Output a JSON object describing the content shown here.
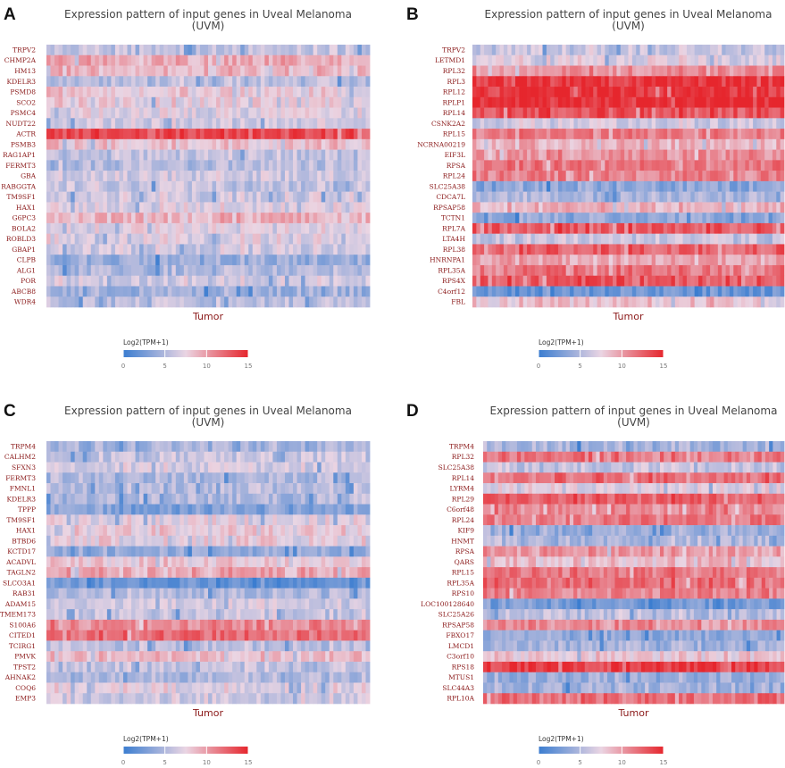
{
  "colors": {
    "scale_low": "#3b7dd0",
    "scale_mid": "#ead5e3",
    "scale_high": "#e6262d",
    "letter": "#111111",
    "title": "#444444",
    "gene_label": "#8b1a1a",
    "xlabel": "#8b1a1a"
  },
  "chart_data": [
    {
      "panel": "A",
      "type": "heatmap",
      "title": "Expression pattern of input genes in Uveal Melanoma",
      "subtitle": "(UVM)",
      "xlabel": "Tumor",
      "legend_title": "Log2(TPM+1)",
      "legend_ticks": [
        "0",
        "5",
        "10",
        "15"
      ],
      "value_range": [
        0,
        15
      ],
      "sample_count": 80,
      "rows": [
        "TRPV2",
        "CHMP2A",
        "HM13",
        "KDELR3",
        "PSMD8",
        "SCO2",
        "PSMC4",
        "NUDT22",
        "ACTR",
        "PSMB3",
        "RAG1AP1",
        "FERMT3",
        "GBA",
        "RABGGTA",
        "TM9SF1",
        "HAX1",
        "G6PC3",
        "BOLA2",
        "ROBLD3",
        "GBAP1",
        "CLPB",
        "ALG1",
        "POR",
        "ABCB8",
        "WDR4"
      ],
      "row_mean": [
        6,
        9.5,
        9,
        5.5,
        8,
        7.5,
        7,
        6.5,
        13.5,
        8.5,
        6,
        5.5,
        6.5,
        6,
        6.5,
        7,
        9,
        7.5,
        7,
        6.5,
        4,
        5,
        6.5,
        4.5,
        5.5
      ]
    },
    {
      "panel": "B",
      "type": "heatmap",
      "title": "Expression pattern of input genes in Uveal Melanoma",
      "subtitle": "(UVM)",
      "xlabel": "Tumor",
      "legend_title": "Log2(TPM+1)",
      "legend_ticks": [
        "0",
        "5",
        "10",
        "15"
      ],
      "value_range": [
        0,
        15
      ],
      "sample_count": 80,
      "rows": [
        "TRPV2",
        "LETMD1",
        "RPL32",
        "RPL3",
        "RPL12",
        "RPLP1",
        "RPL14",
        "CSNK2A2",
        "RPL15",
        "NCRNA00219",
        "EIF3L",
        "RPSA",
        "RPL24",
        "SLC25A38",
        "CDCA7L",
        "RPSAP58",
        "TCTN1",
        "RPL7A",
        "LTA4H",
        "RPL38",
        "HNRNPA1",
        "RPL35A",
        "RPS4X",
        "C4orf12",
        "FBL"
      ],
      "row_mean": [
        6,
        7,
        10.5,
        14.5,
        14.5,
        15,
        13,
        6.5,
        11,
        9,
        10.5,
        11.5,
        11,
        3.5,
        5,
        9,
        3.5,
        13,
        6,
        12.5,
        9.5,
        11.5,
        13,
        2,
        8.5
      ]
    },
    {
      "panel": "C",
      "type": "heatmap",
      "title": "Expression pattern of input genes in Uveal Melanoma",
      "subtitle": "(UVM)",
      "xlabel": "Tumor",
      "legend_title": "Log2(TPM+1)",
      "legend_ticks": [
        "0",
        "5",
        "10",
        "15"
      ],
      "value_range": [
        0,
        15
      ],
      "sample_count": 80,
      "rows": [
        "TRPM4",
        "CALHM2",
        "SFXN3",
        "FERMT3",
        "FMNL1",
        "KDELR3",
        "TPPP",
        "TM9SF1",
        "HAX1",
        "BTBD6",
        "KCTD17",
        "ACADVL",
        "TAGLN2",
        "SLCO3A1",
        "RAB31",
        "ADAM15",
        "TMEM173",
        "S100A6",
        "CITED1",
        "TCIRG1",
        "PMVK",
        "TPST2",
        "AHNAK2",
        "COQ6",
        "EMP3"
      ],
      "row_mean": [
        4.5,
        6,
        6.5,
        5,
        5.5,
        5,
        3,
        7,
        8,
        7.5,
        4,
        8,
        9.5,
        2,
        5,
        6.5,
        6,
        11,
        12,
        5.5,
        8.5,
        6,
        5,
        7,
        6.5
      ]
    },
    {
      "panel": "D",
      "type": "heatmap",
      "title": "Expression pattern of input genes in Uveal Melanoma",
      "subtitle": "(UVM)",
      "xlabel": "Tumor",
      "legend_title": "Log2(TPM+1)",
      "legend_ticks": [
        "0",
        "5",
        "10",
        "15"
      ],
      "value_range": [
        0,
        15
      ],
      "sample_count": 80,
      "rows": [
        "TRPM4",
        "RPL32",
        "SLC25A38",
        "RPL14",
        "LYRM4",
        "RPL29",
        "C6orf48",
        "RPL24",
        "KIF9",
        "HNMT",
        "RPSA",
        "QARS",
        "RPL15",
        "RPL35A",
        "RPS10",
        "LOC100128640",
        "SLC25A26",
        "RPSAP58",
        "FBXO17",
        "LMCD1",
        "C3orf10",
        "RPS18",
        "MTUS1",
        "SLC44A3",
        "RPL10A"
      ],
      "row_mean": [
        4.5,
        11.5,
        6,
        12,
        7,
        12.5,
        11,
        11.5,
        4,
        5,
        10,
        8.5,
        11.5,
        12,
        11,
        2.5,
        5.5,
        10.5,
        4,
        4.5,
        8,
        14,
        4,
        4.5,
        12
      ]
    }
  ]
}
